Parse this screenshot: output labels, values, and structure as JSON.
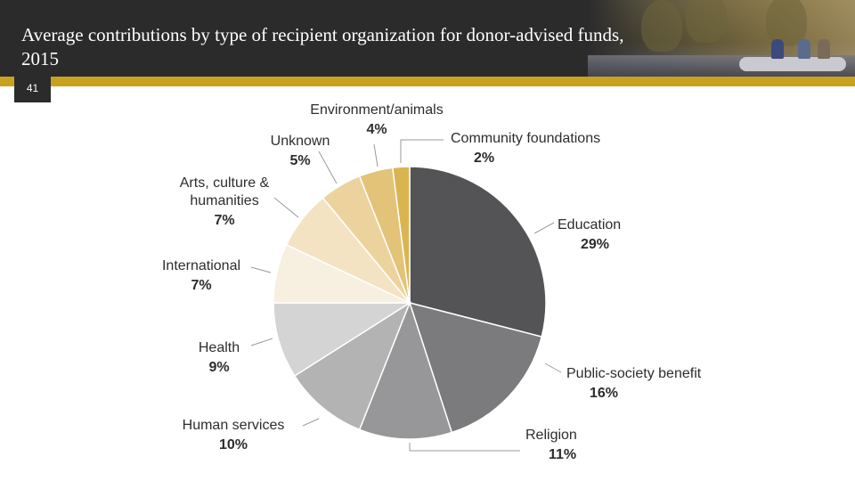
{
  "slide": {
    "title": "Average contributions by type of recipient organization for donor-advised funds, 2015",
    "number": "41"
  },
  "colors": {
    "header_bg": "#2b2b2b",
    "accent_gold": "#c8a21e"
  },
  "chart_data": {
    "type": "pie",
    "title": "",
    "slices": [
      {
        "label": "Education",
        "value": 29,
        "display": "29%",
        "color": "#545456"
      },
      {
        "label": "Public-society benefit",
        "value": 16,
        "display": "16%",
        "color": "#7b7a7c"
      },
      {
        "label": "Religion",
        "value": 11,
        "display": "11%",
        "color": "#979698"
      },
      {
        "label": "Human services",
        "value": 10,
        "display": "10%",
        "color": "#b3b3b4"
      },
      {
        "label": "Health",
        "value": 9,
        "display": "9%",
        "color": "#d4d4d5"
      },
      {
        "label": "International",
        "value": 7,
        "display": "7%",
        "color": "#f7efdf"
      },
      {
        "label": "Arts, culture & humanities",
        "value": 7,
        "display": "7%",
        "color": "#f3e3c2"
      },
      {
        "label": "Unknown",
        "value": 5,
        "display": "5%",
        "color": "#ecd39e"
      },
      {
        "label": "Environment/animals",
        "value": 4,
        "display": "4%",
        "color": "#e3c378"
      },
      {
        "label": "Community foundations",
        "value": 2,
        "display": "2%",
        "color": "#d9b552"
      }
    ]
  }
}
